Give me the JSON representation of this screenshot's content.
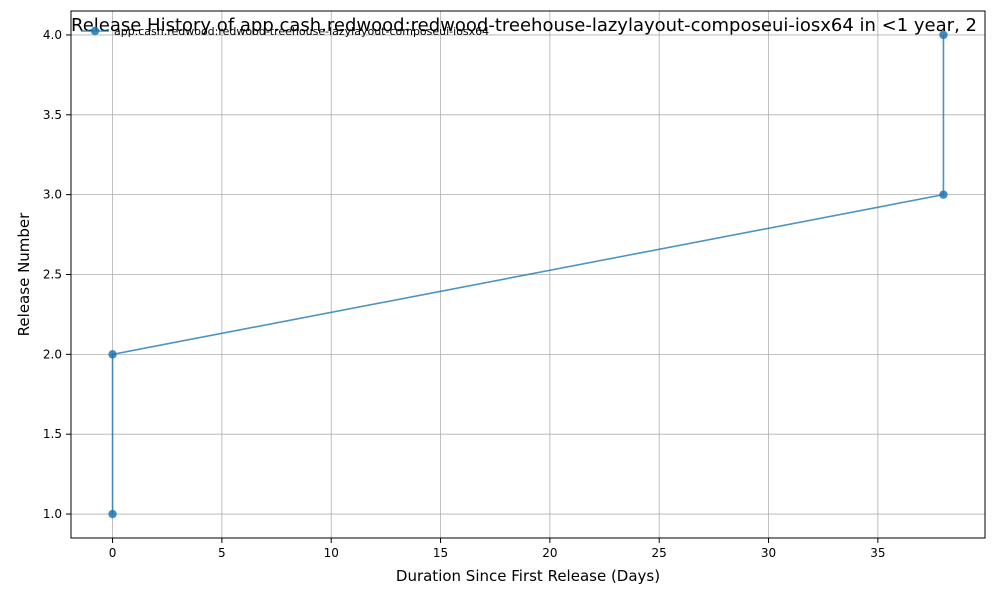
{
  "chart_data": {
    "type": "line",
    "title": "Release History of app.cash.redwood:redwood-treehouse-lazylayout-composeui-iosx64 in <1 year, 2",
    "xlabel": "Duration Since First Release (Days)",
    "ylabel": "Release Number",
    "xlim": [
      -1.9,
      39.9
    ],
    "ylim": [
      0.85,
      4.15
    ],
    "xticks": [
      0,
      5,
      10,
      15,
      20,
      25,
      30,
      35
    ],
    "yticks": [
      1.0,
      1.5,
      2.0,
      2.5,
      3.0,
      3.5,
      4.0
    ],
    "xtick_labels": [
      "0",
      "5",
      "10",
      "15",
      "20",
      "25",
      "30",
      "35"
    ],
    "ytick_labels": [
      "1.0",
      "1.5",
      "2.0",
      "2.5",
      "3.0",
      "3.5",
      "4.0"
    ],
    "grid": true,
    "legend_position": "top-left",
    "series": [
      {
        "name": "app.cash.redwood:redwood-treehouse-lazylayout-composeui-iosx64",
        "color": "#1f77b4",
        "marker": "circle",
        "x": [
          0,
          0,
          38,
          38
        ],
        "y": [
          1,
          2,
          3,
          4
        ]
      }
    ]
  }
}
